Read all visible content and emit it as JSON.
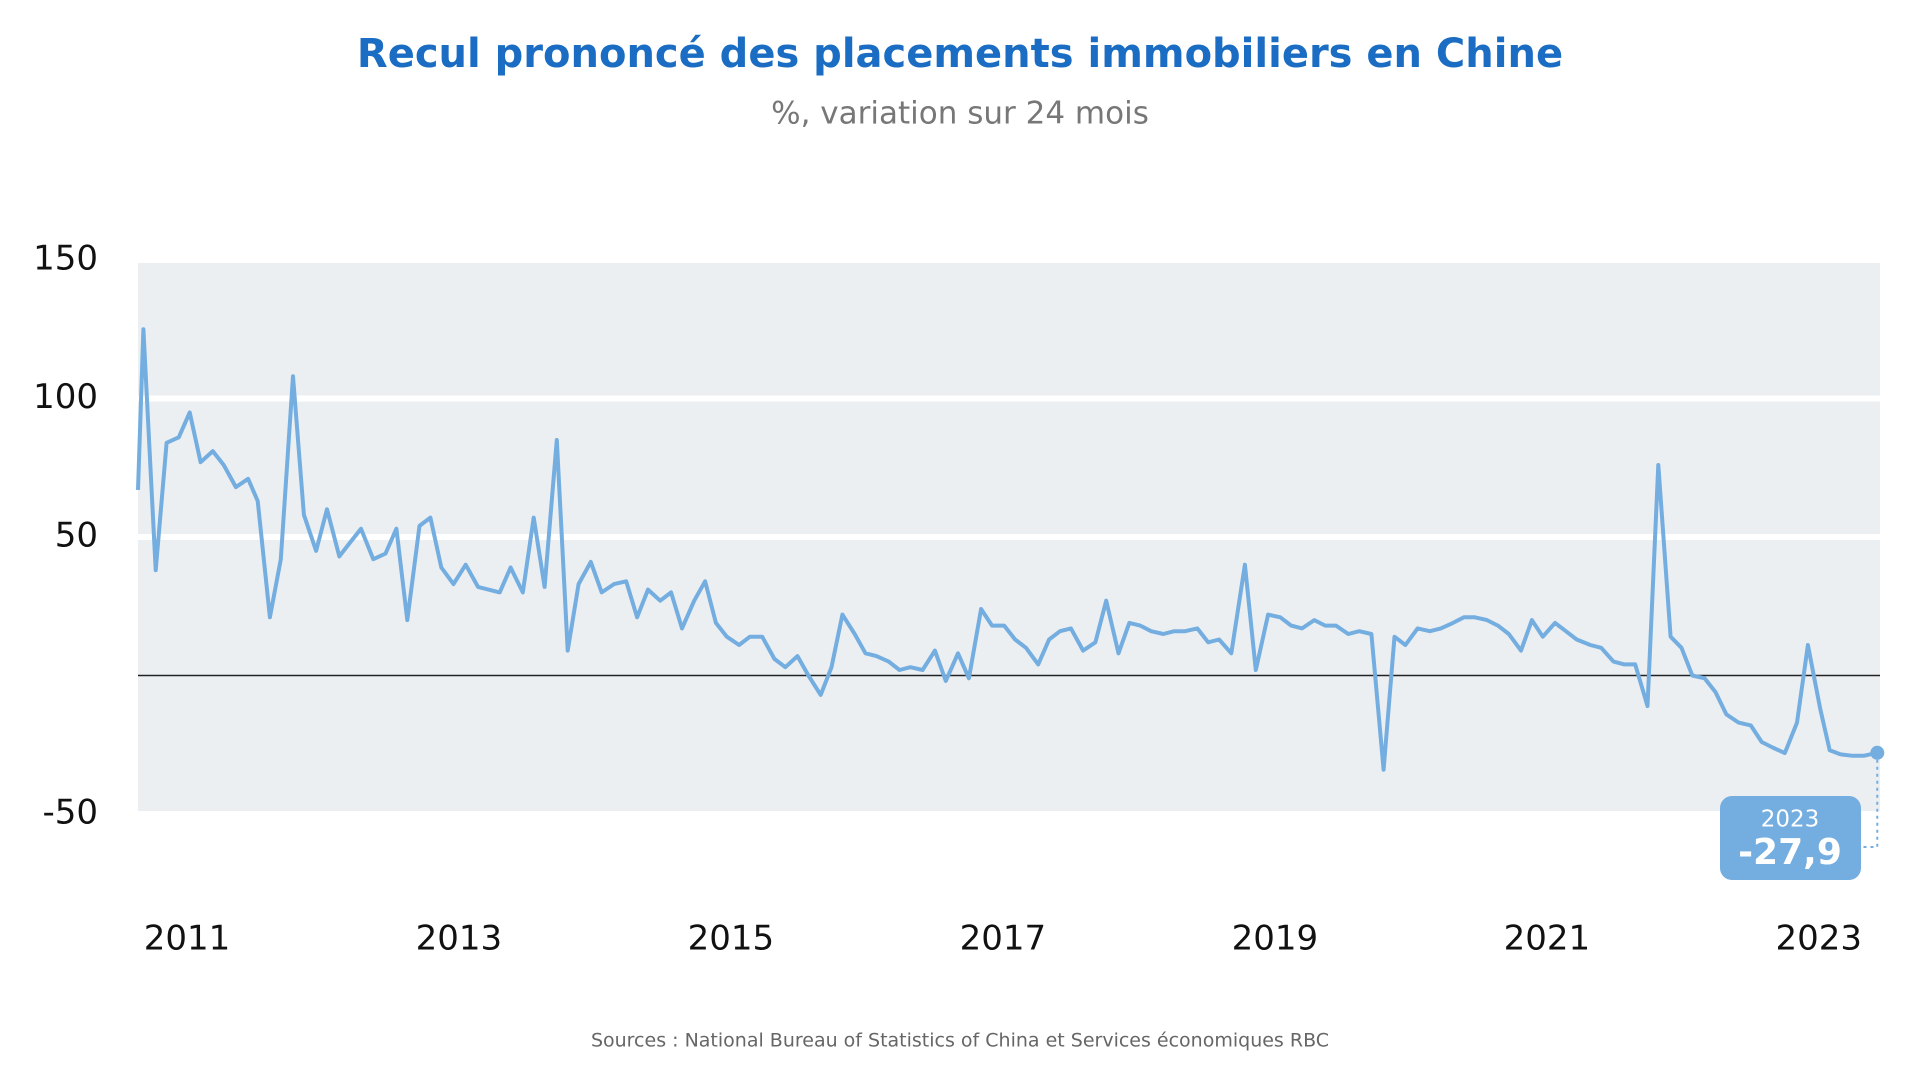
{
  "chart_data": {
    "type": "line",
    "title": "Recul prononcé des placements immobiliers en Chine",
    "subtitle": "%, variation sur 24 mois",
    "source": "Sources : National Bureau of Statistics of China et Services économiques RBC",
    "x": [
      2010.64,
      2010.68,
      2010.77,
      2010.85,
      2010.94,
      2011.02,
      2011.1,
      2011.19,
      2011.27,
      2011.36,
      2011.45,
      2011.52,
      2011.61,
      2011.69,
      2011.78,
      2011.86,
      2011.95,
      2012.03,
      2012.12,
      2012.2,
      2012.28,
      2012.37,
      2012.46,
      2012.54,
      2012.62,
      2012.71,
      2012.79,
      2012.87,
      2012.96,
      2013.05,
      2013.14,
      2013.3,
      2013.38,
      2013.47,
      2013.55,
      2013.63,
      2013.72,
      2013.8,
      2013.88,
      2013.97,
      2014.05,
      2014.14,
      2014.23,
      2014.31,
      2014.39,
      2014.48,
      2014.56,
      2014.64,
      2014.73,
      2014.81,
      2014.89,
      2014.97,
      2015.06,
      2015.14,
      2015.23,
      2015.32,
      2015.4,
      2015.49,
      2015.57,
      2015.66,
      2015.74,
      2015.82,
      2015.91,
      2015.99,
      2016.07,
      2016.16,
      2016.24,
      2016.32,
      2016.41,
      2016.5,
      2016.58,
      2016.67,
      2016.75,
      2016.84,
      2016.92,
      2017.01,
      2017.09,
      2017.17,
      2017.26,
      2017.34,
      2017.42,
      2017.5,
      2017.59,
      2017.68,
      2017.76,
      2017.85,
      2017.93,
      2018.01,
      2018.09,
      2018.18,
      2018.26,
      2018.34,
      2018.43,
      2018.51,
      2018.59,
      2018.68,
      2018.78,
      2018.86,
      2018.95,
      2019.04,
      2019.12,
      2019.2,
      2019.29,
      2019.37,
      2019.45,
      2019.54,
      2019.62,
      2019.71,
      2019.8,
      2019.88,
      2019.96,
      2020.05,
      2020.14,
      2020.22,
      2020.31,
      2020.39,
      2020.47,
      2020.56,
      2020.64,
      2020.72,
      2020.81,
      2020.89,
      2020.97,
      2021.06,
      2021.14,
      2021.22,
      2021.32,
      2021.4,
      2021.49,
      2021.57,
      2021.65,
      2021.74,
      2021.82,
      2021.91,
      2021.99,
      2022.07,
      2022.16,
      2022.24,
      2022.32,
      2022.41,
      2022.5,
      2022.58,
      2022.66,
      2022.75,
      2022.84,
      2022.92,
      2023.01,
      2023.08,
      2023.16,
      2023.25,
      2023.33,
      2023.43
    ],
    "values": [
      67,
      125,
      38,
      84,
      86,
      95,
      77,
      81,
      76,
      68,
      71,
      63,
      21,
      42,
      108,
      58,
      45,
      60,
      43,
      48,
      53,
      42,
      44,
      53,
      20,
      54,
      57,
      39,
      33,
      40,
      32,
      30,
      39,
      30,
      57,
      32,
      85,
      9,
      33,
      41,
      30,
      33,
      34,
      21,
      31,
      27,
      30,
      17,
      27,
      34,
      19,
      14,
      11,
      14,
      14,
      6,
      3,
      7,
      0,
      -7,
      3,
      22,
      15,
      8,
      7,
      5,
      2,
      3,
      2,
      9,
      -2,
      8,
      -1,
      24,
      18,
      18,
      13,
      10,
      4,
      13,
      16,
      17,
      9,
      12,
      27,
      8,
      19,
      18,
      16,
      15,
      16,
      16,
      17,
      12,
      13,
      8,
      40,
      2,
      22,
      21,
      18,
      17,
      20,
      18,
      18,
      15,
      16,
      15,
      -34,
      14,
      11,
      17,
      16,
      17,
      19,
      21,
      21,
      20,
      18,
      15,
      9,
      20,
      14,
      19,
      16,
      13,
      11,
      10,
      5,
      4,
      4,
      -11,
      76,
      14,
      10,
      0,
      -1,
      -6,
      -14,
      -17,
      -18,
      -24,
      -26,
      -28,
      -17,
      11,
      -12,
      -27,
      -28.5,
      -29,
      -29,
      -27.9
    ],
    "color": "#74ade0",
    "xlim": [
      2010.64,
      2023.45
    ],
    "xticks": [
      2011,
      2013,
      2015,
      2017,
      2019,
      2021,
      2023
    ],
    "ylim": [
      -50,
      150
    ],
    "yticks": [
      -50,
      50,
      100,
      150
    ],
    "grid": true,
    "zero_line": true,
    "annotation": {
      "title": "2023",
      "text": "-27,9"
    }
  }
}
